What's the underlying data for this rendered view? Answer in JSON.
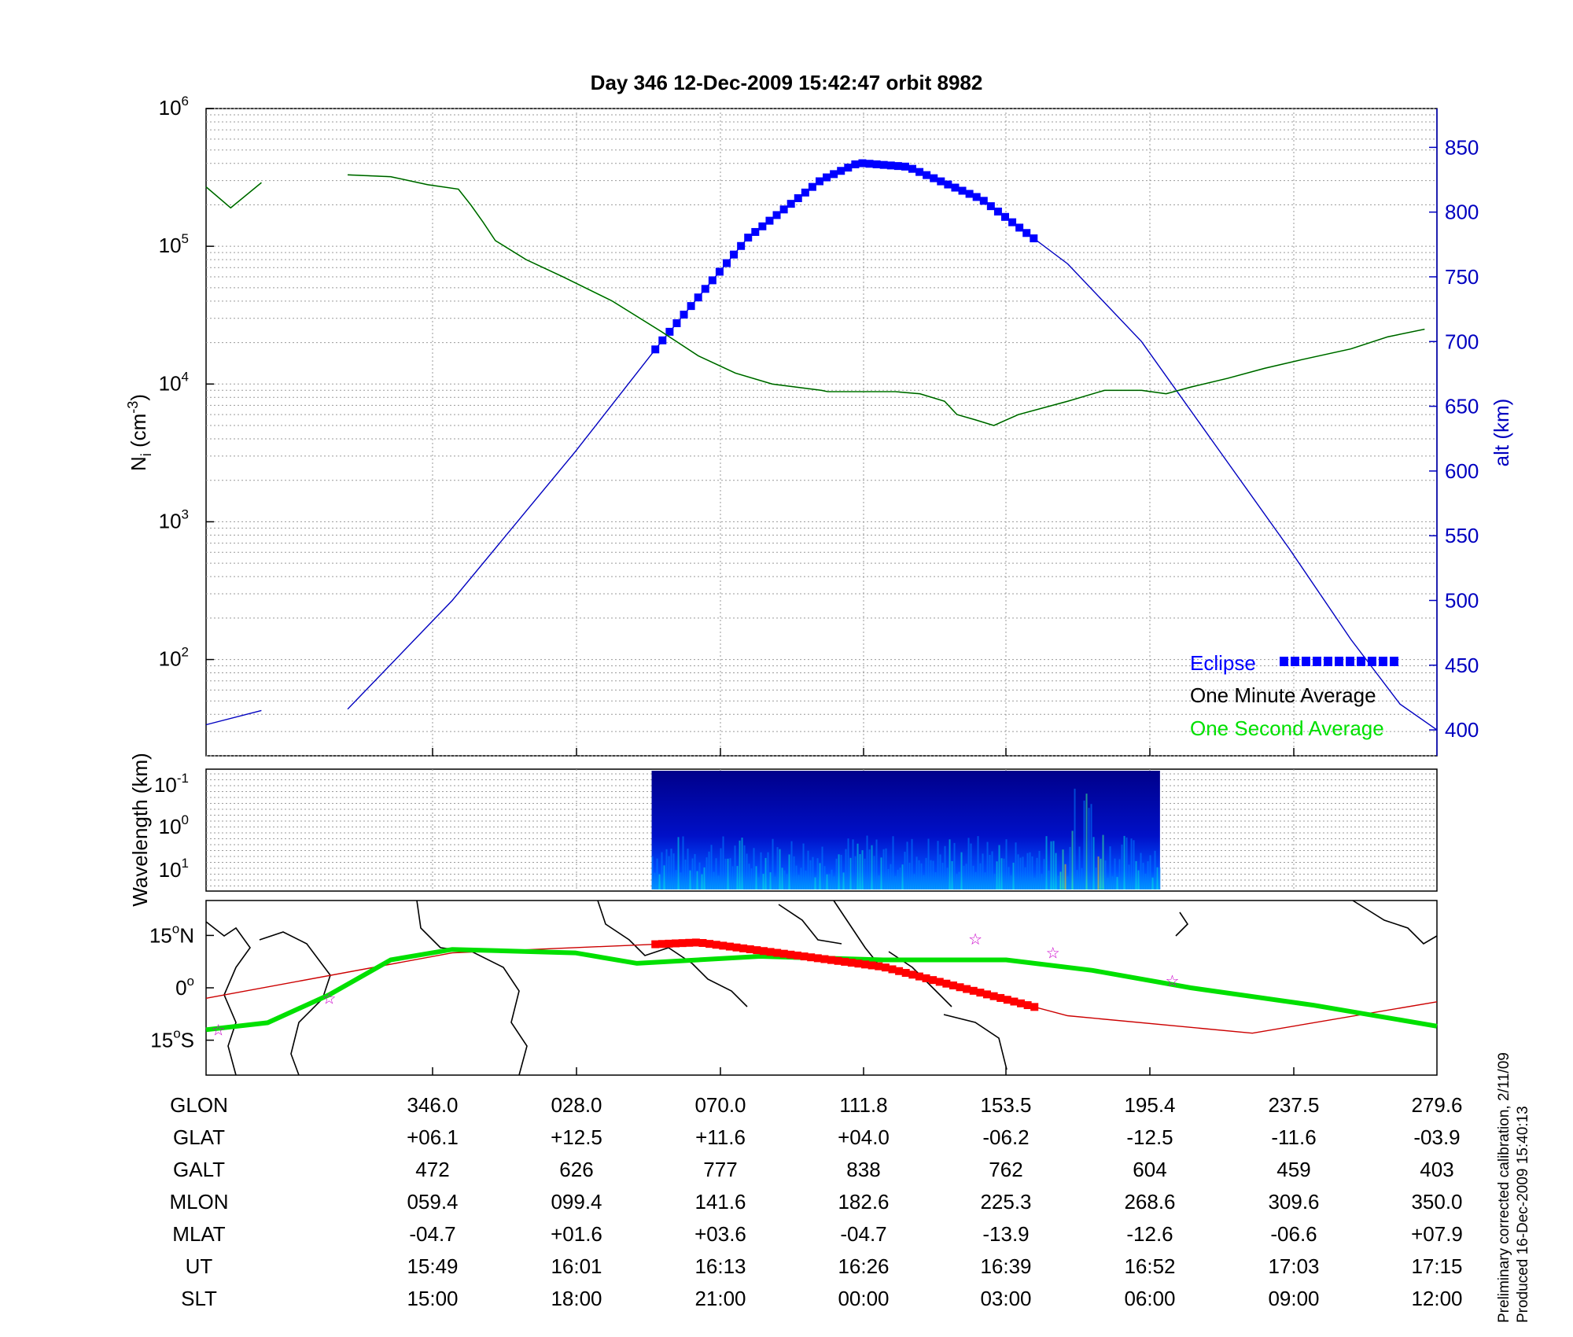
{
  "title": "Day 346  12-Dec-2009 15:42:47   orbit 8982",
  "colors": {
    "density_minute": "#004000",
    "density_second": "#00e000",
    "altitude": "#0000c0",
    "eclipse": "#0000ff",
    "map_track": "#cc0000",
    "map_eclipse": "#ff0000",
    "equator": "#00e000",
    "station_star": "#cc00cc"
  },
  "footer_note": {
    "line1": "Preliminary corrected calibration, 2/11/09",
    "line2": "Produced 16-Dec-2009 15:40:13"
  },
  "chart_data": [
    {
      "type": "line",
      "panel": "ion-density",
      "ylabel": "N",
      "ylabel_sub": "i",
      "ylabel_unit": " (cm",
      "ylabel_sup": "-3",
      "ylabel_close": ")",
      "yscale": "log",
      "ylim": [
        20,
        1000000
      ],
      "yticks": [
        {
          "base": "10",
          "exp": "2",
          "value": 100
        },
        {
          "base": "10",
          "exp": "3",
          "value": 1000
        },
        {
          "base": "10",
          "exp": "4",
          "value": 10000
        },
        {
          "base": "10",
          "exp": "5",
          "value": 100000
        },
        {
          "base": "10",
          "exp": "6",
          "value": 1000000
        }
      ],
      "y2label": "alt (km)",
      "y2lim": [
        380,
        880
      ],
      "y2ticks": [
        "400",
        "450",
        "500",
        "550",
        "600",
        "650",
        "700",
        "750",
        "800",
        "850"
      ],
      "xlim": [
        0,
        1
      ],
      "grid": true,
      "legend_position": "bottom-right",
      "legend": [
        "Eclipse",
        "One Minute Average",
        "One Second Average"
      ],
      "series": [
        {
          "name": "One Minute Average",
          "segments": [
            [
              [
                0.0,
                270000
              ],
              [
                0.02,
                190000
              ],
              [
                0.045,
                290000
              ]
            ],
            [
              [
                0.115,
                330000
              ],
              [
                0.15,
                320000
              ],
              [
                0.18,
                280000
              ],
              [
                0.205,
                260000
              ],
              [
                0.215,
                200000
              ],
              [
                0.225,
                150000
              ],
              [
                0.235,
                110000
              ],
              [
                0.26,
                80000
              ],
              [
                0.29,
                60000
              ],
              [
                0.33,
                40000
              ],
              [
                0.37,
                24000
              ],
              [
                0.4,
                16000
              ],
              [
                0.43,
                12000
              ],
              [
                0.46,
                10000
              ],
              [
                0.5,
                9000
              ],
              [
                0.53,
                8800
              ],
              [
                0.56,
                8800
              ],
              [
                0.5,
                9000
              ],
              [
                0.58,
                8500
              ],
              [
                0.6,
                7500
              ],
              [
                0.505,
                8800
              ],
              [
                0.5,
                9000
              ],
              [
                0.61,
                6000
              ],
              [
                0.625,
                5500
              ],
              [
                0.64,
                5000
              ],
              [
                0.66,
                6000
              ],
              [
                0.7,
                7500
              ],
              [
                0.73,
                9000
              ],
              [
                0.76,
                9000
              ],
              [
                0.78,
                8500
              ],
              [
                0.8,
                9500
              ],
              [
                0.83,
                11000
              ],
              [
                0.86,
                13000
              ],
              [
                0.89,
                15000
              ],
              [
                0.93,
                18000
              ],
              [
                0.96,
                22000
              ],
              [
                0.99,
                25000
              ]
            ]
          ]
        }
      ],
      "altitude_km": {
        "name": "alt (km)",
        "segments": [
          [
            [
              0.0,
              404
            ],
            [
              0.045,
              415
            ]
          ],
          [
            [
              0.115,
              416
            ],
            [
              0.2,
              500
            ],
            [
              0.3,
              615
            ],
            [
              0.37,
              700
            ],
            [
              0.44,
              780
            ],
            [
              0.5,
              825
            ],
            [
              0.53,
              838
            ],
            [
              0.57,
              835
            ],
            [
              0.63,
              810
            ],
            [
              0.7,
              760
            ],
            [
              0.76,
              700
            ],
            [
              0.82,
              620
            ],
            [
              0.88,
              540
            ],
            [
              0.93,
              470
            ],
            [
              0.97,
              420
            ],
            [
              1.0,
              400
            ]
          ]
        ]
      },
      "eclipse_interval": [
        0.365,
        0.675
      ]
    },
    {
      "type": "heatmap",
      "panel": "wavelength-spectrogram",
      "ylabel": "Wavelength (km)",
      "yticks": [
        {
          "base": "10",
          "exp": "-1"
        },
        {
          "base": "10",
          "exp": "0"
        },
        {
          "base": "10",
          "exp": "1"
        }
      ],
      "data_interval": [
        0.362,
        0.775
      ]
    },
    {
      "type": "line",
      "panel": "ground-track-map",
      "yticks": [
        {
          "value": "15",
          "unit": "N"
        },
        {
          "value": "0",
          "unit": ""
        },
        {
          "value": "15",
          "unit": "S"
        }
      ],
      "ylim": [
        -25,
        25
      ],
      "orbit_track": {
        "name": "orbit track",
        "x": [
          0.0,
          0.2,
          0.4,
          0.55,
          0.7,
          0.85,
          1.0
        ],
        "y": [
          -3,
          10,
          13,
          6,
          -8,
          -13,
          -4
        ]
      },
      "magnetic_equator": {
        "name": "magnetic equator",
        "x": [
          0.0,
          0.05,
          0.1,
          0.15,
          0.2,
          0.3,
          0.35,
          0.45,
          0.55,
          0.65,
          0.72,
          0.8,
          0.9,
          1.0
        ],
        "y": [
          -12,
          -10,
          -2,
          8,
          11,
          10,
          7,
          9,
          8,
          8,
          5,
          0,
          -5,
          -11
        ]
      },
      "eclipse_interval": [
        0.365,
        0.675
      ],
      "stations": [
        [
          0.01,
          -12
        ],
        [
          0.1,
          -3
        ],
        [
          0.625,
          14
        ],
        [
          0.688,
          10
        ],
        [
          0.785,
          2
        ]
      ]
    }
  ],
  "ephemeris": {
    "rows": [
      {
        "label": "GLON",
        "values": [
          "346.0",
          "028.0",
          "070.0",
          "111.8",
          "153.5",
          "195.4",
          "237.5",
          "279.6"
        ]
      },
      {
        "label": "GLAT",
        "values": [
          "+06.1",
          "+12.5",
          "+11.6",
          "+04.0",
          "-06.2",
          "-12.5",
          "-11.6",
          "-03.9"
        ]
      },
      {
        "label": "GALT",
        "values": [
          "472",
          "626",
          "777",
          "838",
          "762",
          "604",
          "459",
          "403"
        ]
      },
      {
        "label": "MLON",
        "values": [
          "059.4",
          "099.4",
          "141.6",
          "182.6",
          "225.3",
          "268.6",
          "309.6",
          "350.0"
        ]
      },
      {
        "label": "MLAT",
        "values": [
          "-04.7",
          "+01.6",
          "+03.6",
          "-04.7",
          "-13.9",
          "-12.6",
          "-06.6",
          "+07.9"
        ]
      },
      {
        "label": "UT",
        "values": [
          "15:49",
          "16:01",
          "16:13",
          "16:26",
          "16:39",
          "16:52",
          "17:03",
          "17:15"
        ]
      },
      {
        "label": "SLT",
        "values": [
          "15:00",
          "18:00",
          "21:00",
          "00:00",
          "03:00",
          "06:00",
          "09:00",
          "12:00"
        ]
      }
    ]
  }
}
